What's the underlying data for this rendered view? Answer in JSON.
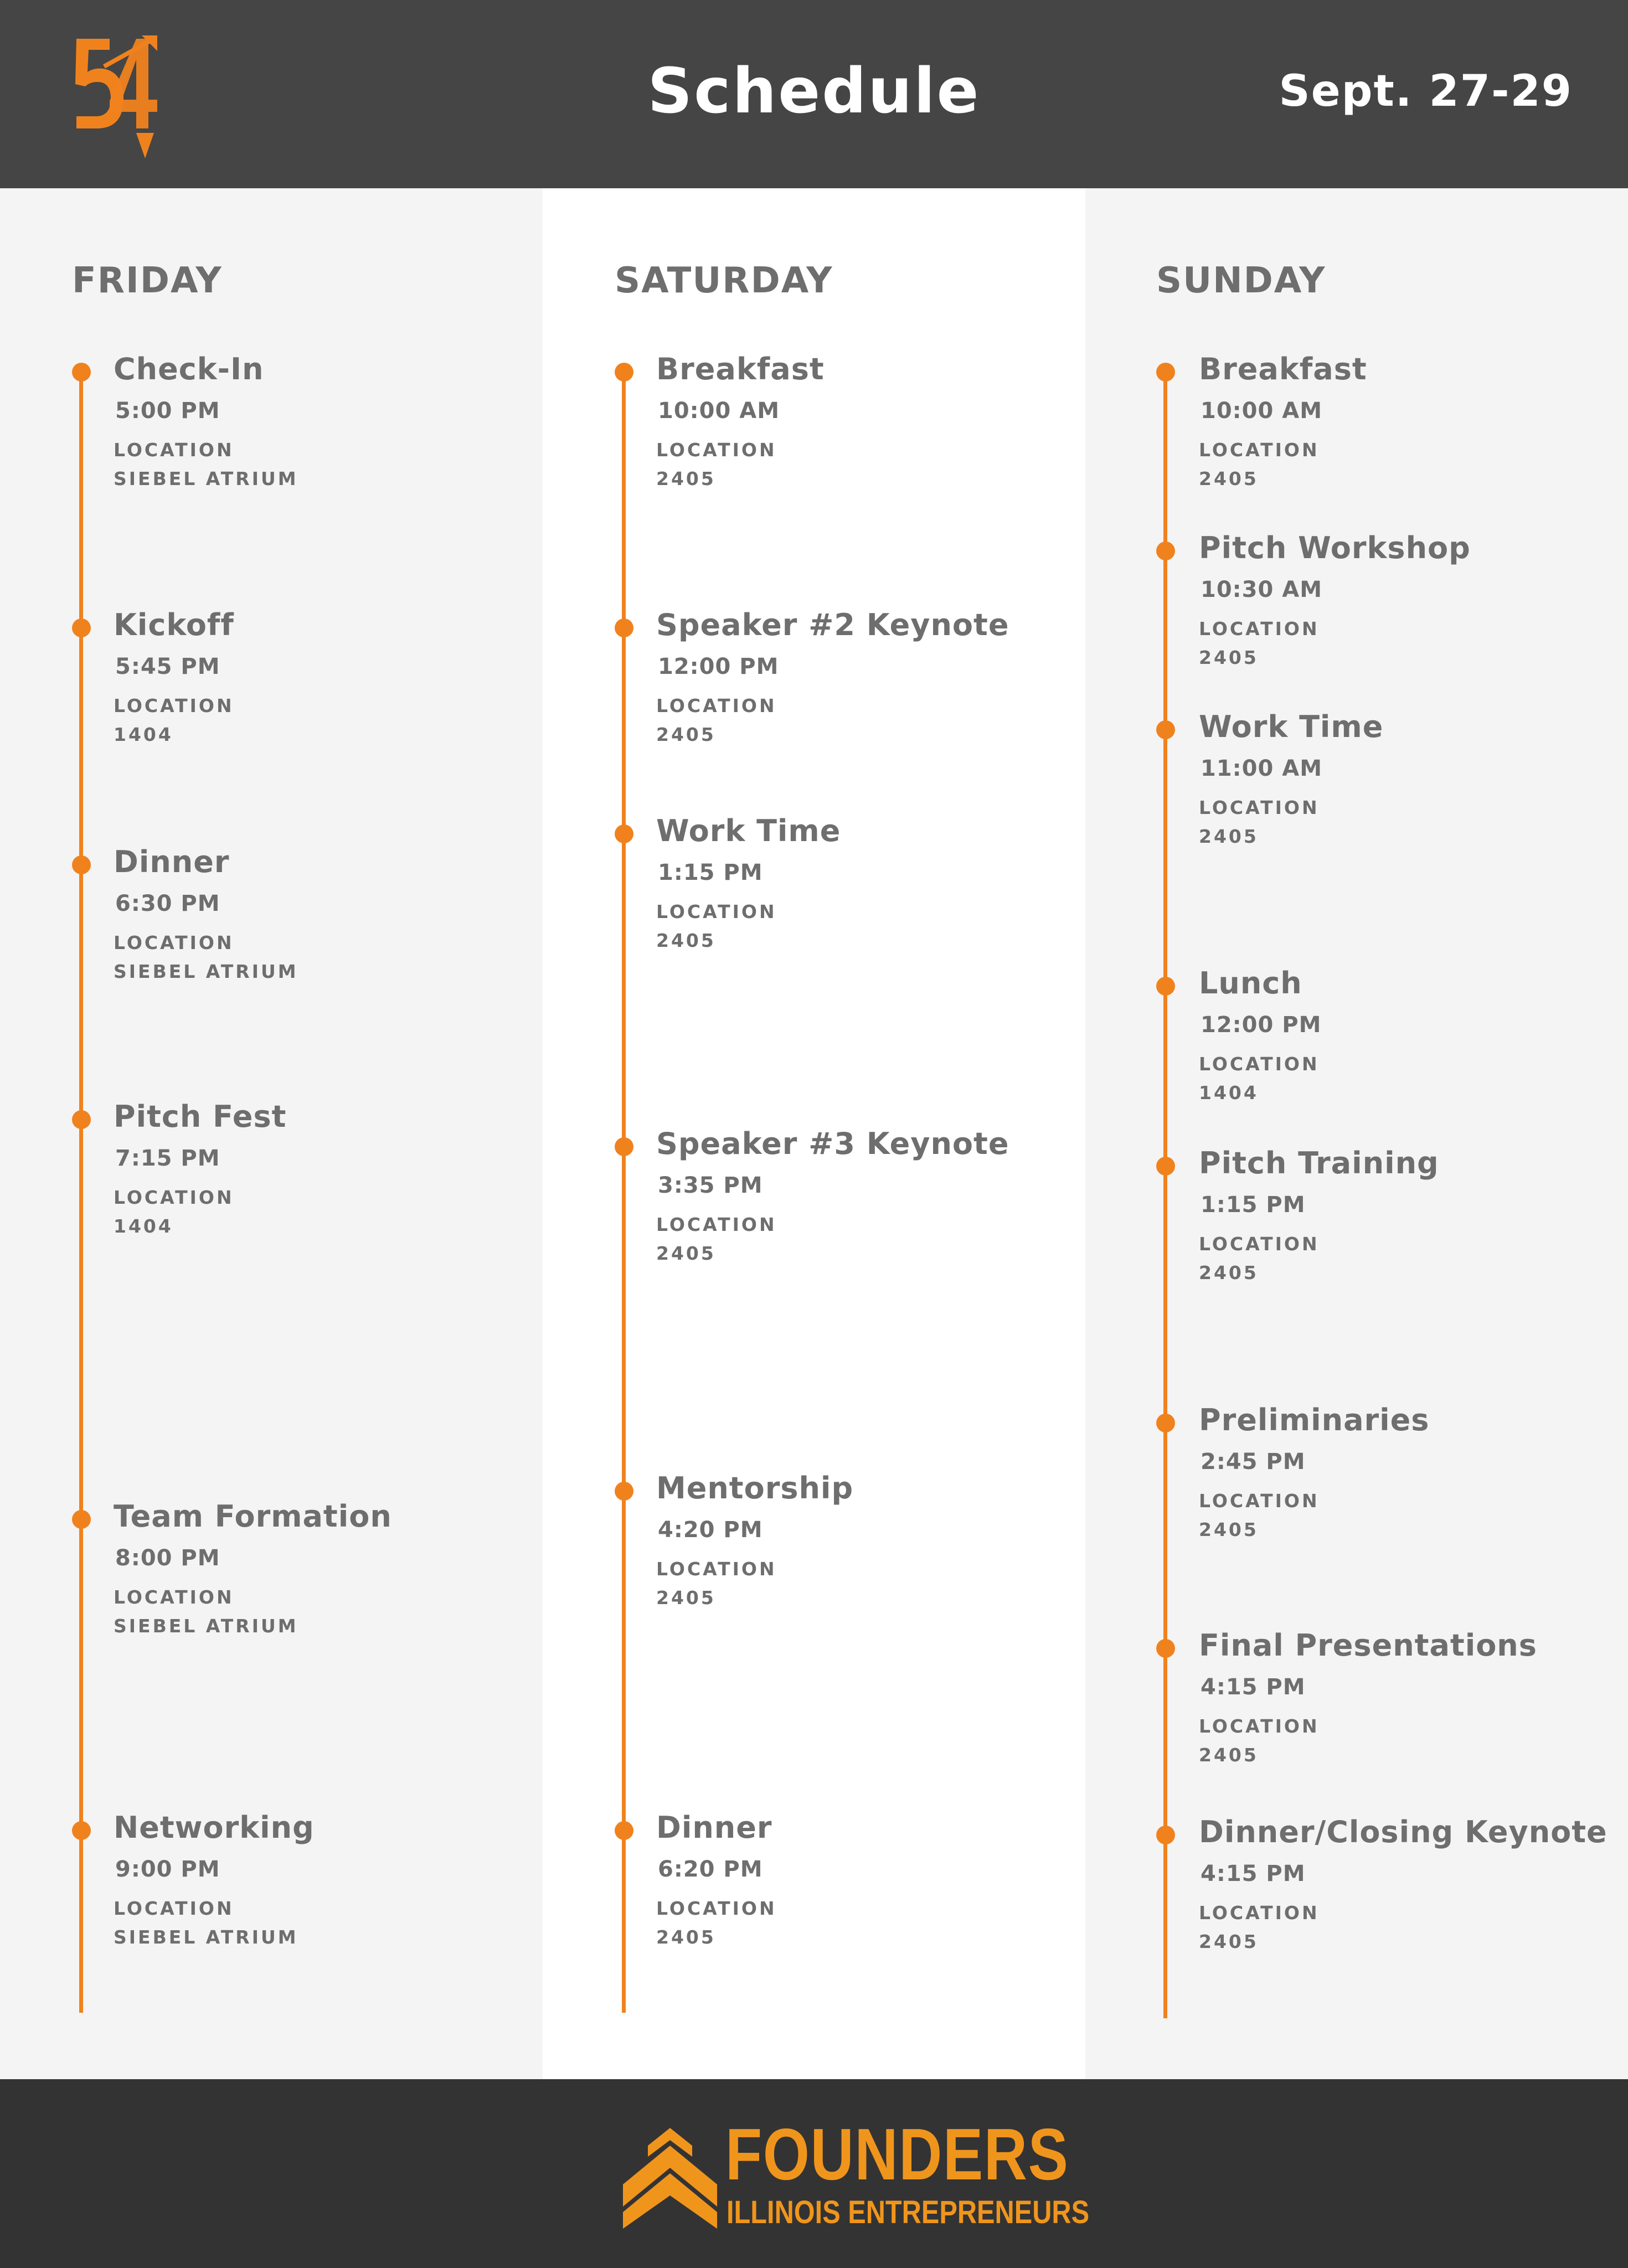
{
  "header": {
    "logo_text": "54",
    "title": "Schedule",
    "dates": "Sept. 27-29"
  },
  "colors": {
    "accent": "#f0821e",
    "header_bg": "#454545",
    "footer_bg": "#333333",
    "text": "#6e6e6e"
  },
  "days": [
    {
      "title": "FRIDAY",
      "events": [
        {
          "name": "Check-In",
          "time": "5:00 PM",
          "location_label": "LOCATION",
          "location": "SIEBEL ATRIUM"
        },
        {
          "name": "Kickoff",
          "time": "5:45 PM",
          "location_label": "LOCATION",
          "location": "1404"
        },
        {
          "name": "Dinner",
          "time": "6:30 PM",
          "location_label": "LOCATION",
          "location": "SIEBEL ATRIUM"
        },
        {
          "name": "Pitch Fest",
          "time": "7:15 PM",
          "location_label": "LOCATION",
          "location": "1404"
        },
        {
          "name": "Team Formation",
          "time": "8:00 PM",
          "location_label": "LOCATION",
          "location": "SIEBEL ATRIUM"
        },
        {
          "name": "Networking",
          "time": "9:00 PM",
          "location_label": "LOCATION",
          "location": "SIEBEL ATRIUM"
        }
      ]
    },
    {
      "title": "SATURDAY",
      "events": [
        {
          "name": "Breakfast",
          "time": "10:00 AM",
          "location_label": "LOCATION",
          "location": "2405"
        },
        {
          "name": "Speaker #2 Keynote",
          "time": "12:00 PM",
          "location_label": "LOCATION",
          "location": "2405"
        },
        {
          "name": "Work Time",
          "time": "1:15 PM",
          "location_label": "LOCATION",
          "location": "2405"
        },
        {
          "name": "Speaker #3 Keynote",
          "time": "3:35 PM",
          "location_label": "LOCATION",
          "location": "2405"
        },
        {
          "name": "Mentorship",
          "time": "4:20 PM",
          "location_label": "LOCATION",
          "location": "2405"
        },
        {
          "name": "Dinner",
          "time": "6:20 PM",
          "location_label": "LOCATION",
          "location": "2405"
        }
      ]
    },
    {
      "title": "SUNDAY",
      "events": [
        {
          "name": "Breakfast",
          "time": "10:00 AM",
          "location_label": "LOCATION",
          "location": "2405"
        },
        {
          "name": "Pitch Workshop",
          "time": "10:30 AM",
          "location_label": "LOCATION",
          "location": "2405"
        },
        {
          "name": "Work Time",
          "time": "11:00 AM",
          "location_label": "LOCATION",
          "location": "2405"
        },
        {
          "name": "Lunch",
          "time": "12:00 PM",
          "location_label": "LOCATION",
          "location": "1404"
        },
        {
          "name": "Pitch Training",
          "time": "1:15 PM",
          "location_label": "LOCATION",
          "location": "2405"
        },
        {
          "name": "Preliminaries",
          "time": "2:45 PM",
          "location_label": "LOCATION",
          "location": "2405"
        },
        {
          "name": "Final Presentations",
          "time": "4:15 PM",
          "location_label": "LOCATION",
          "location": "2405"
        },
        {
          "name": "Dinner/Closing Keynote",
          "time": "4:15 PM",
          "location_label": "LOCATION",
          "location": "2405"
        }
      ]
    }
  ],
  "footer": {
    "brand": "FOUNDERS",
    "subtitle": "ILLINOIS ENTREPRENEURS"
  }
}
